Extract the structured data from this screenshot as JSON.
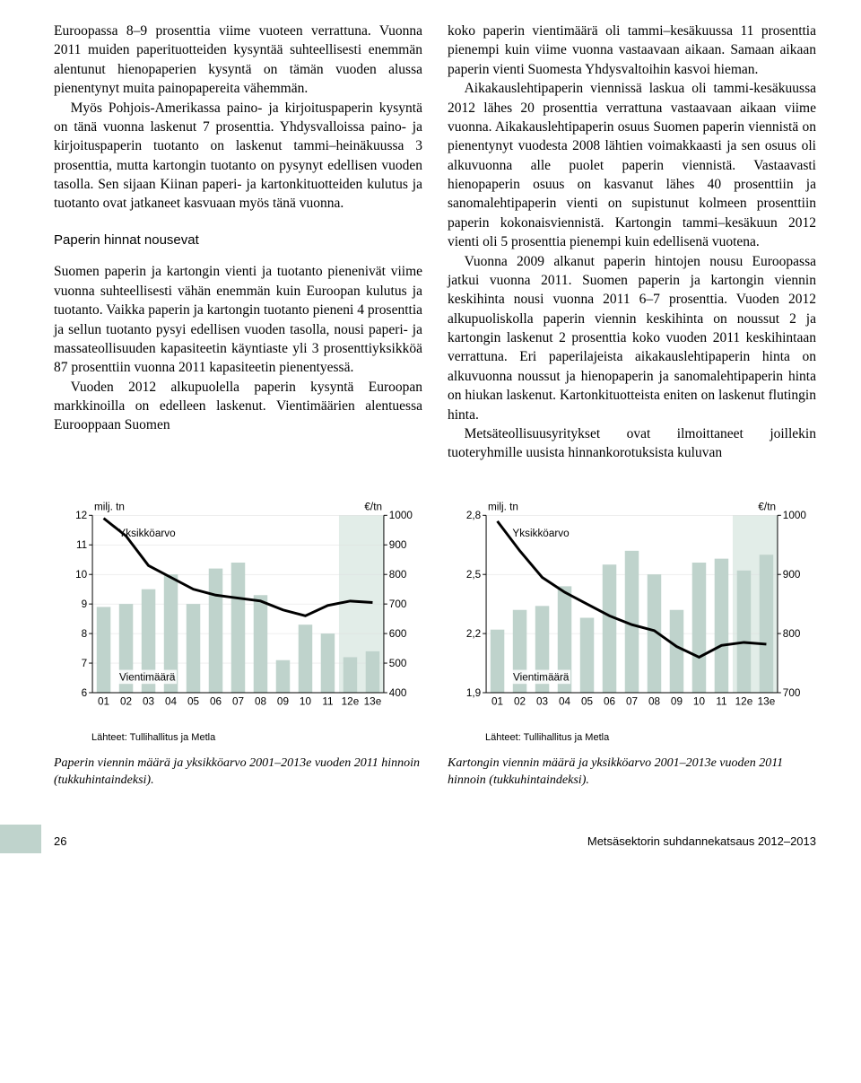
{
  "colLeft": {
    "p1": "Euroopassa 8–9 prosenttia viime vuoteen verrattuna. Vuonna 2011 muiden paperituotteiden kysyntää suhteellisesti enemmän alentunut hienopaperien kysyntä on tämän vuoden alussa pienentynyt muita painopapereita vähemmän.",
    "p2": "Myös Pohjois-Amerikassa paino- ja kirjoituspaperin kysyntä on tänä vuonna laskenut 7 prosenttia. Yhdysvalloissa paino- ja kirjoituspaperin tuotanto on laskenut tammi–heinäkuussa 3 prosenttia, mutta kartongin tuotanto on pysynyt edellisen vuoden tasolla. Sen sijaan Kiinan paperi- ja kartonkituotteiden kulutus ja tuotanto ovat jatkaneet kasvuaan myös tänä vuonna.",
    "subhead": "Paperin hinnat nousevat",
    "p3": "Suomen paperin ja kartongin vienti ja tuotanto pienenivät viime vuonna suhteellisesti vähän enemmän kuin Euroopan kulutus ja tuotanto. Vaikka paperin ja kartongin tuotanto pieneni 4 prosenttia ja sellun tuotanto pysyi edellisen vuoden tasolla, nousi paperi- ja massateollisuuden kapasiteetin käyntiaste yli 3 prosenttiyksikköä 87 prosenttiin vuonna 2011 kapasiteetin pienentyessä.",
    "p4": "Vuoden 2012 alkupuolella paperin kysyntä Euroopan markkinoilla on edelleen laskenut. Vientimäärien alentuessa Eurooppaan Suomen"
  },
  "colRight": {
    "p1": "koko paperin vientimäärä oli tammi–kesäkuussa 11 prosenttia pienempi kuin viime vuonna vastaavaan aikaan. Samaan aikaan paperin vienti Suomesta Yhdysvaltoihin kasvoi hieman.",
    "p2": "Aikakauslehtipaperin viennissä laskua oli tammi-kesäkuussa 2012 lähes 20 prosenttia verrattuna vastaavaan aikaan viime vuonna. Aikakauslehtipaperin osuus Suomen paperin viennistä on pienentynyt vuodesta 2008 lähtien voimakkaasti ja sen osuus oli alkuvuonna alle puolet paperin viennistä. Vastaavasti hienopaperin osuus on kasvanut lähes 40 prosenttiin ja sanomalehtipaperin vienti on supistunut kolmeen prosenttiin paperin kokonaisviennistä. Kartongin tammi–kesäkuun 2012 vienti oli 5 prosenttia pienempi kuin edellisenä vuotena.",
    "p3": "Vuonna 2009 alkanut paperin hintojen nousu Euroopassa jatkui vuonna 2011. Suomen paperin ja kartongin viennin keskihinta nousi vuonna 2011 6–7 prosenttia. Vuoden 2012 alkupuoliskolla paperin viennin keskihinta on noussut 2 ja kartongin laskenut 2 prosenttia koko vuoden 2011 keskihintaan verrattuna. Eri paperilajeista aikakauslehtipaperin hinta on alkuvuonna noussut ja hienopaperin ja sanomalehtipaperin hinta on hiukan laskenut. Kartonkituotteista eniten on laskenut flutingin hinta.",
    "p4": "Metsäteollisuusyritykset ovat ilmoittaneet joillekin tuoteryhmille uusista hinnankorotuksista kuluvan"
  },
  "chart1": {
    "left_unit": "milj. tn",
    "right_unit": "€/tn",
    "y_left_ticks": [
      6,
      7,
      8,
      9,
      10,
      11,
      12
    ],
    "y_right_ticks": [
      400,
      500,
      600,
      700,
      800,
      900,
      1000
    ],
    "x_labels": [
      "01",
      "02",
      "03",
      "04",
      "05",
      "06",
      "07",
      "08",
      "09",
      "10",
      "11",
      "12e",
      "13e"
    ],
    "bars": [
      8.9,
      9.0,
      9.5,
      10.0,
      9.0,
      10.2,
      10.4,
      9.3,
      7.1,
      8.3,
      8.0,
      7.2,
      7.4
    ],
    "line": [
      990,
      930,
      830,
      790,
      750,
      730,
      720,
      710,
      680,
      660,
      695,
      710,
      705
    ],
    "bar_color": "#bfd3cc",
    "forecast_bg": "#e2ede8",
    "line_color": "#000000",
    "ann_yks": "Yksikköarvo",
    "ann_vienti": "Vientimäärä",
    "source": "Lähteet: Tullihallitus ja Metla",
    "caption": "Paperin viennin määrä ja yksikköarvo 2001–2013e vuoden 2011 hinnoin (tukkuhintaindeksi)."
  },
  "chart2": {
    "left_unit": "milj. tn",
    "right_unit": "€/tn",
    "y_left_ticks": [
      1.9,
      2.2,
      2.5,
      2.8
    ],
    "y_right_ticks": [
      700,
      800,
      900,
      1000
    ],
    "x_labels": [
      "01",
      "02",
      "03",
      "04",
      "05",
      "06",
      "07",
      "08",
      "09",
      "10",
      "11",
      "12e",
      "13e"
    ],
    "bars": [
      2.22,
      2.32,
      2.34,
      2.44,
      2.28,
      2.55,
      2.62,
      2.5,
      2.32,
      2.56,
      2.58,
      2.52,
      2.6
    ],
    "line": [
      990,
      940,
      895,
      870,
      850,
      830,
      815,
      805,
      778,
      760,
      780,
      785,
      782
    ],
    "bar_color": "#bfd3cc",
    "forecast_bg": "#e2ede8",
    "line_color": "#000000",
    "ann_yks": "Yksikköarvo",
    "ann_vienti": "Vientimäärä",
    "source": "Lähteet: Tullihallitus ja Metla",
    "caption": "Kartongin viennin määrä ja yksikköarvo 2001–2013e vuoden 2011 hinnoin (tukkuhintaindeksi)."
  },
  "footer": {
    "page": "26",
    "title": "Metsäsektorin suhdannekatsaus 2012–2013"
  }
}
